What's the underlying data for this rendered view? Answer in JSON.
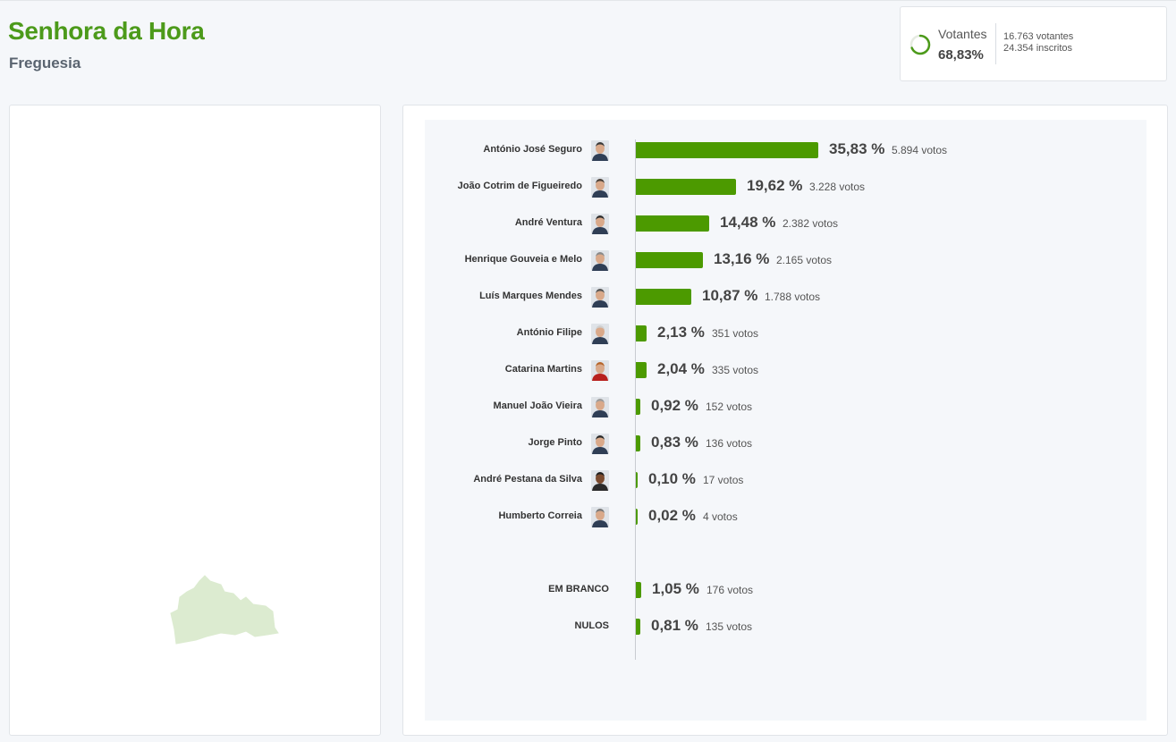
{
  "header": {
    "title": "Senhora da Hora",
    "subtitle": "Freguesia"
  },
  "turnout": {
    "label": "Votantes",
    "percent": "68,83%",
    "percent_value": 68.83,
    "voters": "16.763 votantes",
    "registered": "24.354 inscritos"
  },
  "colors": {
    "accent": "#4c9a1a",
    "bar": "#4c9a00",
    "map_fill": "#dcebd0"
  },
  "results": {
    "candidates": [
      {
        "name": "António José Seguro",
        "pct": "35,83 %",
        "value": 35.83,
        "votes": "5.894 votos",
        "avatar": "portrait-icon"
      },
      {
        "name": "João Cotrim de Figueiredo",
        "pct": "19,62 %",
        "value": 19.62,
        "votes": "3.228 votos",
        "avatar": "portrait-icon"
      },
      {
        "name": "André Ventura",
        "pct": "14,48 %",
        "value": 14.48,
        "votes": "2.382 votos",
        "avatar": "portrait-icon"
      },
      {
        "name": "Henrique Gouveia e Melo",
        "pct": "13,16 %",
        "value": 13.16,
        "votes": "2.165 votos",
        "avatar": "portrait-icon"
      },
      {
        "name": "Luís Marques Mendes",
        "pct": "10,87 %",
        "value": 10.87,
        "votes": "1.788 votos",
        "avatar": "portrait-icon"
      },
      {
        "name": "António Filipe",
        "pct": "2,13 %",
        "value": 2.13,
        "votes": "351 votos",
        "avatar": "portrait-icon"
      },
      {
        "name": "Catarina Martins",
        "pct": "2,04 %",
        "value": 2.04,
        "votes": "335 votos",
        "avatar": "portrait-icon"
      },
      {
        "name": "Manuel João Vieira",
        "pct": "0,92 %",
        "value": 0.92,
        "votes": "152 votos",
        "avatar": "portrait-icon"
      },
      {
        "name": "Jorge Pinto",
        "pct": "0,83 %",
        "value": 0.83,
        "votes": "136 votos",
        "avatar": "portrait-icon"
      },
      {
        "name": "André Pestana da Silva",
        "pct": "0,10 %",
        "value": 0.1,
        "votes": "17 votos",
        "avatar": "portrait-icon"
      },
      {
        "name": "Humberto Correia",
        "pct": "0,02 %",
        "value": 0.02,
        "votes": "4 votos",
        "avatar": "portrait-icon"
      }
    ],
    "others": [
      {
        "name": "EM BRANCO",
        "pct": "1,05 %",
        "value": 1.05,
        "votes": "176 votos"
      },
      {
        "name": "NULOS",
        "pct": "0,81 %",
        "value": 0.81,
        "votes": "135 votos"
      }
    ]
  }
}
